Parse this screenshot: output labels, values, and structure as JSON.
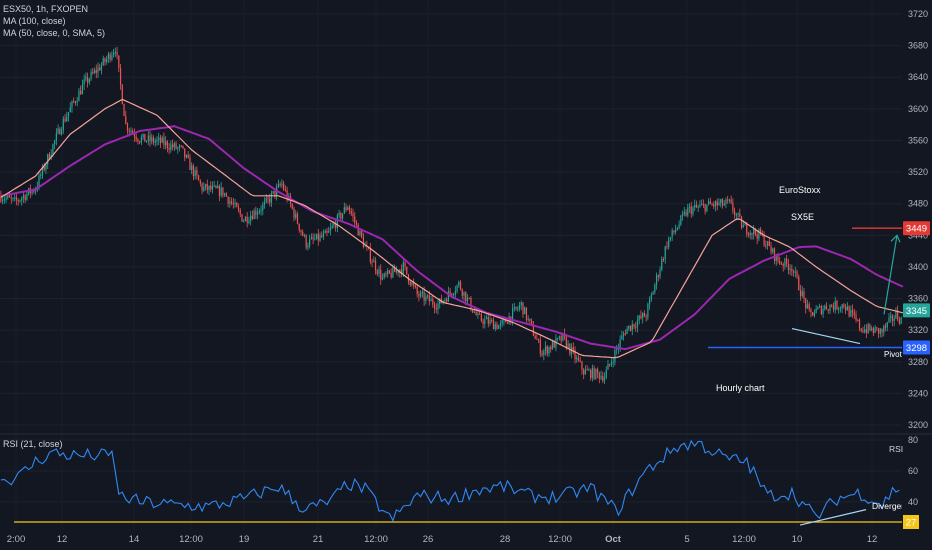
{
  "header": {
    "symbol_line": "ESX50, 1h, FXOPEN",
    "ma1_line": "MA (100, close)",
    "ma2_line": "MA (50, close, 0, SMA, 5)"
  },
  "annotations": {
    "euro": "EuroStoxx",
    "sx5e": "SX5E",
    "hourly": "Hourly chart",
    "pivot": "Pivot",
    "divergence": "Divergence"
  },
  "rsi_header": "RSI (21, close)",
  "rsi_axis_title": "RSI",
  "colors": {
    "background": "#131722",
    "up": "#26a69a",
    "down": "#ef5350",
    "ma100": "#9c27b0",
    "ma50": "#f7a399",
    "rsi": "#2f89f5",
    "level_line": "#f5c518",
    "pivot_line": "#2962ff",
    "target_line": "#e53935",
    "projection": "#26a69a",
    "divergence_line": "#a8d4f5"
  },
  "chart_data": [
    {
      "type": "candlestick",
      "title": "ESX50, 1h, FXOPEN",
      "ylim": [
        3200,
        3720
      ],
      "y_ticks": [
        3200,
        3240,
        3280,
        3320,
        3360,
        3400,
        3440,
        3480,
        3520,
        3560,
        3600,
        3640,
        3680,
        3720
      ],
      "x_tick_labels": [
        "2:00",
        "12",
        "14",
        "12:00",
        "19",
        "21",
        "12:00",
        "26",
        "28",
        "12:00",
        "Oct",
        "5",
        "12:00",
        "10",
        "12"
      ],
      "price_tags": [
        {
          "label": "3449",
          "value": 3449,
          "color": "#e53935"
        },
        {
          "label": "3345",
          "value": 3345,
          "color": "#26a69a"
        },
        {
          "label": "3298",
          "value": 3298,
          "color": "#2962ff"
        }
      ],
      "price_anchors": [
        [
          0,
          3490
        ],
        [
          8,
          3482
        ],
        [
          20,
          3500
        ],
        [
          35,
          3580
        ],
        [
          48,
          3632
        ],
        [
          60,
          3660
        ],
        [
          66,
          3678
        ],
        [
          72,
          3580
        ],
        [
          80,
          3562
        ],
        [
          92,
          3558
        ],
        [
          104,
          3548
        ],
        [
          116,
          3500
        ],
        [
          128,
          3495
        ],
        [
          140,
          3460
        ],
        [
          152,
          3478
        ],
        [
          162,
          3505
        ],
        [
          176,
          3430
        ],
        [
          188,
          3440
        ],
        [
          200,
          3478
        ],
        [
          210,
          3425
        ],
        [
          220,
          3385
        ],
        [
          232,
          3400
        ],
        [
          240,
          3365
        ],
        [
          252,
          3352
        ],
        [
          264,
          3378
        ],
        [
          275,
          3335
        ],
        [
          288,
          3325
        ],
        [
          300,
          3352
        ],
        [
          312,
          3292
        ],
        [
          324,
          3310
        ],
        [
          336,
          3268
        ],
        [
          348,
          3262
        ],
        [
          360,
          3320
        ],
        [
          372,
          3340
        ],
        [
          384,
          3430
        ],
        [
          396,
          3472
        ],
        [
          408,
          3478
        ],
        [
          420,
          3480
        ],
        [
          428,
          3450
        ],
        [
          438,
          3440
        ],
        [
          448,
          3408
        ],
        [
          456,
          3400
        ],
        [
          466,
          3340
        ],
        [
          476,
          3350
        ],
        [
          486,
          3352
        ],
        [
          496,
          3322
        ],
        [
          508,
          3318
        ],
        [
          516,
          3340
        ],
        [
          520,
          3330
        ]
      ],
      "ma100_anchors": [
        [
          0,
          3490
        ],
        [
          20,
          3498
        ],
        [
          40,
          3528
        ],
        [
          60,
          3555
        ],
        [
          80,
          3572
        ],
        [
          100,
          3578
        ],
        [
          120,
          3562
        ],
        [
          140,
          3525
        ],
        [
          160,
          3495
        ],
        [
          180,
          3470
        ],
        [
          200,
          3455
        ],
        [
          220,
          3435
        ],
        [
          240,
          3395
        ],
        [
          260,
          3362
        ],
        [
          280,
          3342
        ],
        [
          300,
          3330
        ],
        [
          320,
          3318
        ],
        [
          340,
          3303
        ],
        [
          360,
          3296
        ],
        [
          380,
          3308
        ],
        [
          400,
          3340
        ],
        [
          420,
          3385
        ],
        [
          440,
          3408
        ],
        [
          460,
          3425
        ],
        [
          470,
          3426
        ],
        [
          490,
          3410
        ],
        [
          505,
          3390
        ],
        [
          520,
          3375
        ]
      ],
      "ma50_anchors": [
        [
          0,
          3488
        ],
        [
          20,
          3515
        ],
        [
          40,
          3568
        ],
        [
          60,
          3600
        ],
        [
          70,
          3612
        ],
        [
          90,
          3592
        ],
        [
          110,
          3548
        ],
        [
          130,
          3515
        ],
        [
          145,
          3490
        ],
        [
          160,
          3490
        ],
        [
          175,
          3478
        ],
        [
          195,
          3452
        ],
        [
          215,
          3420
        ],
        [
          235,
          3385
        ],
        [
          255,
          3355
        ],
        [
          275,
          3345
        ],
        [
          295,
          3330
        ],
        [
          315,
          3310
        ],
        [
          335,
          3288
        ],
        [
          355,
          3285
        ],
        [
          375,
          3305
        ],
        [
          395,
          3382
        ],
        [
          410,
          3440
        ],
        [
          425,
          3462
        ],
        [
          440,
          3440
        ],
        [
          455,
          3425
        ],
        [
          470,
          3400
        ],
        [
          490,
          3370
        ],
        [
          505,
          3350
        ],
        [
          520,
          3342
        ]
      ]
    },
    {
      "type": "line",
      "title": "RSI (21, close)",
      "ylim": [
        20,
        85
      ],
      "y_ticks": [
        40,
        60,
        80
      ],
      "level": 27,
      "level_label": "27",
      "rsi_anchors": [
        [
          0,
          54
        ],
        [
          10,
          56
        ],
        [
          20,
          66
        ],
        [
          30,
          72
        ],
        [
          40,
          70
        ],
        [
          55,
          70
        ],
        [
          65,
          70
        ],
        [
          68,
          44
        ],
        [
          80,
          40
        ],
        [
          100,
          38
        ],
        [
          120,
          37
        ],
        [
          140,
          42
        ],
        [
          160,
          50
        ],
        [
          175,
          35
        ],
        [
          190,
          40
        ],
        [
          200,
          52
        ],
        [
          210,
          48
        ],
        [
          225,
          28
        ],
        [
          240,
          44
        ],
        [
          260,
          42
        ],
        [
          275,
          48
        ],
        [
          290,
          50
        ],
        [
          305,
          44
        ],
        [
          320,
          43
        ],
        [
          340,
          49
        ],
        [
          355,
          34
        ],
        [
          372,
          60
        ],
        [
          390,
          76
        ],
        [
          402,
          78
        ],
        [
          418,
          68
        ],
        [
          430,
          66
        ],
        [
          442,
          44
        ],
        [
          456,
          46
        ],
        [
          470,
          30
        ],
        [
          482,
          42
        ],
        [
          495,
          46
        ],
        [
          508,
          38
        ],
        [
          515,
          48
        ],
        [
          520,
          50
        ]
      ]
    }
  ]
}
